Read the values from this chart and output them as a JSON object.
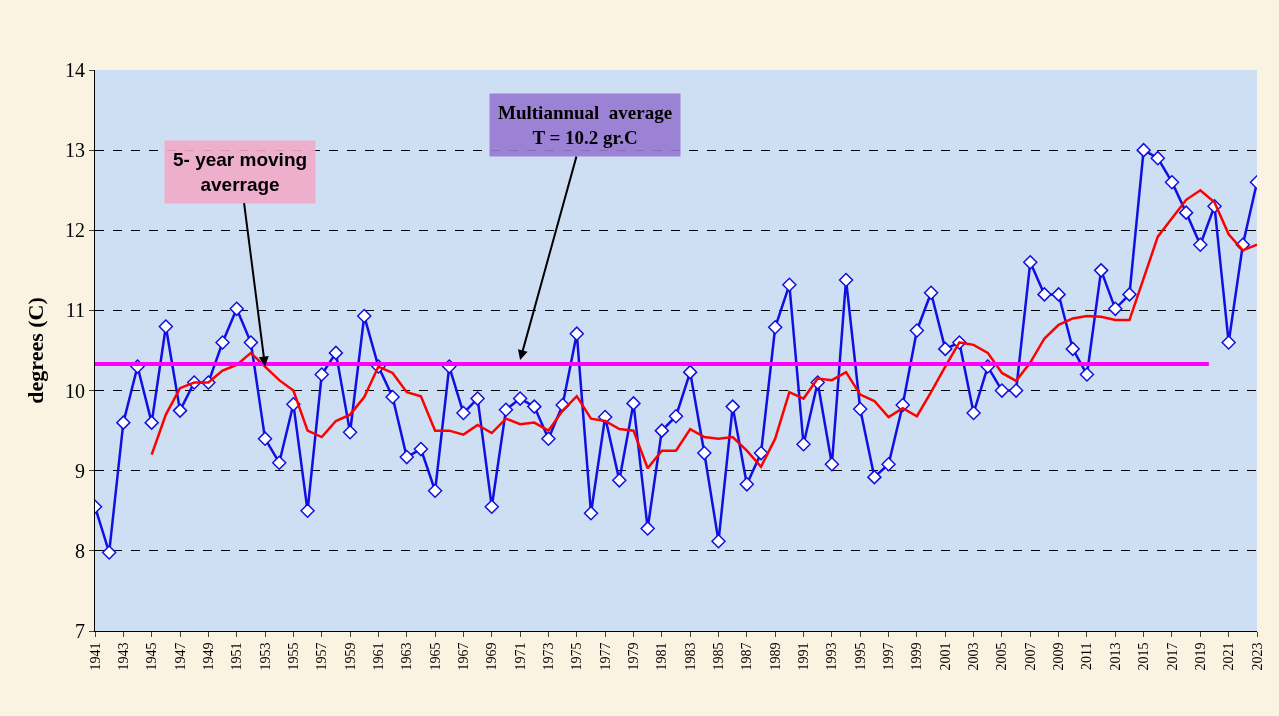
{
  "chart_data": {
    "type": "line",
    "ylabel": "degrees (C)",
    "x": [
      1941,
      1942,
      1943,
      1944,
      1945,
      1946,
      1947,
      1948,
      1949,
      1950,
      1951,
      1952,
      1953,
      1954,
      1955,
      1956,
      1957,
      1958,
      1959,
      1960,
      1961,
      1962,
      1963,
      1964,
      1965,
      1966,
      1967,
      1968,
      1969,
      1970,
      1971,
      1972,
      1973,
      1974,
      1975,
      1976,
      1977,
      1978,
      1979,
      1980,
      1981,
      1982,
      1983,
      1984,
      1985,
      1986,
      1987,
      1988,
      1989,
      1990,
      1991,
      1992,
      1993,
      1994,
      1995,
      1996,
      1997,
      1998,
      1999,
      2000,
      2001,
      2002,
      2003,
      2004,
      2005,
      2006,
      2007,
      2008,
      2009,
      2010,
      2011,
      2012,
      2013,
      2014,
      2015,
      2016,
      2017,
      2018,
      2019,
      2020,
      2021,
      2022,
      2023
    ],
    "series": [
      {
        "color": "#1010e0",
        "marker": "diamond",
        "values": [
          8.55,
          7.98,
          9.6,
          10.3,
          9.6,
          10.8,
          9.75,
          10.1,
          10.1,
          10.6,
          11.02,
          10.6,
          9.4,
          9.1,
          9.83,
          8.5,
          10.2,
          10.47,
          9.48,
          10.93,
          10.3,
          9.92,
          9.17,
          9.27,
          8.75,
          10.3,
          9.72,
          9.9,
          8.55,
          9.76,
          9.9,
          9.8,
          9.4,
          9.82,
          10.71,
          8.47,
          9.67,
          8.88,
          9.84,
          8.28,
          9.5,
          9.68,
          10.23,
          9.22,
          8.12,
          9.8,
          8.83,
          9.22,
          10.79,
          11.32,
          9.33,
          10.1,
          9.08,
          11.38,
          9.77,
          8.92,
          9.08,
          9.82,
          10.75,
          11.22,
          10.52,
          10.6,
          9.72,
          10.3,
          10.0,
          10.0,
          11.6,
          11.2,
          11.2,
          10.52,
          10.2,
          11.5,
          11.02,
          11.2,
          13.0,
          12.9,
          12.6,
          12.22,
          11.82,
          12.3,
          10.6,
          11.82,
          12.6
        ]
      },
      {
        "color": "#ff0000",
        "marker": "none",
        "values": [
          null,
          null,
          null,
          null,
          9.2,
          9.7,
          10.03,
          10.1,
          10.1,
          10.25,
          10.32,
          10.47,
          10.3,
          10.13,
          10.0,
          9.5,
          9.42,
          9.62,
          9.7,
          9.92,
          10.3,
          10.22,
          9.98,
          9.93,
          9.5,
          9.5,
          9.45,
          9.57,
          9.47,
          9.65,
          9.58,
          9.6,
          9.5,
          9.75,
          9.93,
          9.65,
          9.62,
          9.52,
          9.5,
          9.03,
          9.25,
          9.25,
          9.52,
          9.42,
          9.4,
          9.42,
          9.25,
          9.05,
          9.4,
          9.98,
          9.9,
          10.15,
          10.13,
          10.23,
          9.95,
          9.87,
          9.67,
          9.78,
          9.68,
          9.98,
          10.3,
          10.6,
          10.57,
          10.47,
          10.22,
          10.12,
          10.35,
          10.65,
          10.82,
          10.9,
          10.93,
          10.92,
          10.88,
          10.88,
          11.4,
          11.92,
          12.15,
          12.38,
          12.5,
          12.35,
          11.95,
          11.75,
          11.82
        ]
      },
      {
        "color": "#ff00ff",
        "marker": "none",
        "x": [
          1941,
          2019.6
        ],
        "values": [
          10.33,
          10.33
        ]
      }
    ],
    "annotations": [
      {
        "text": "5- year moving\naverrage",
        "x": 1953,
        "y": 10.3
      },
      {
        "text": "Multiannual  average\nT = 10.2 gr.C",
        "x": 1971,
        "y": 10.38
      }
    ],
    "xlim": [
      1941,
      2023
    ],
    "xticks": [
      1941,
      1943,
      1945,
      1947,
      1949,
      1951,
      1953,
      1955,
      1957,
      1959,
      1961,
      1963,
      1965,
      1967,
      1969,
      1971,
      1973,
      1975,
      1977,
      1979,
      1981,
      1983,
      1985,
      1987,
      1989,
      1991,
      1993,
      1995,
      1997,
      1999,
      2001,
      2003,
      2005,
      2007,
      2009,
      2011,
      2013,
      2015,
      2017,
      2019,
      2021,
      2023
    ],
    "ylim": [
      7,
      14
    ],
    "yticks": [
      7,
      8,
      9,
      10,
      11,
      12,
      13,
      14
    ],
    "grid": "y"
  }
}
